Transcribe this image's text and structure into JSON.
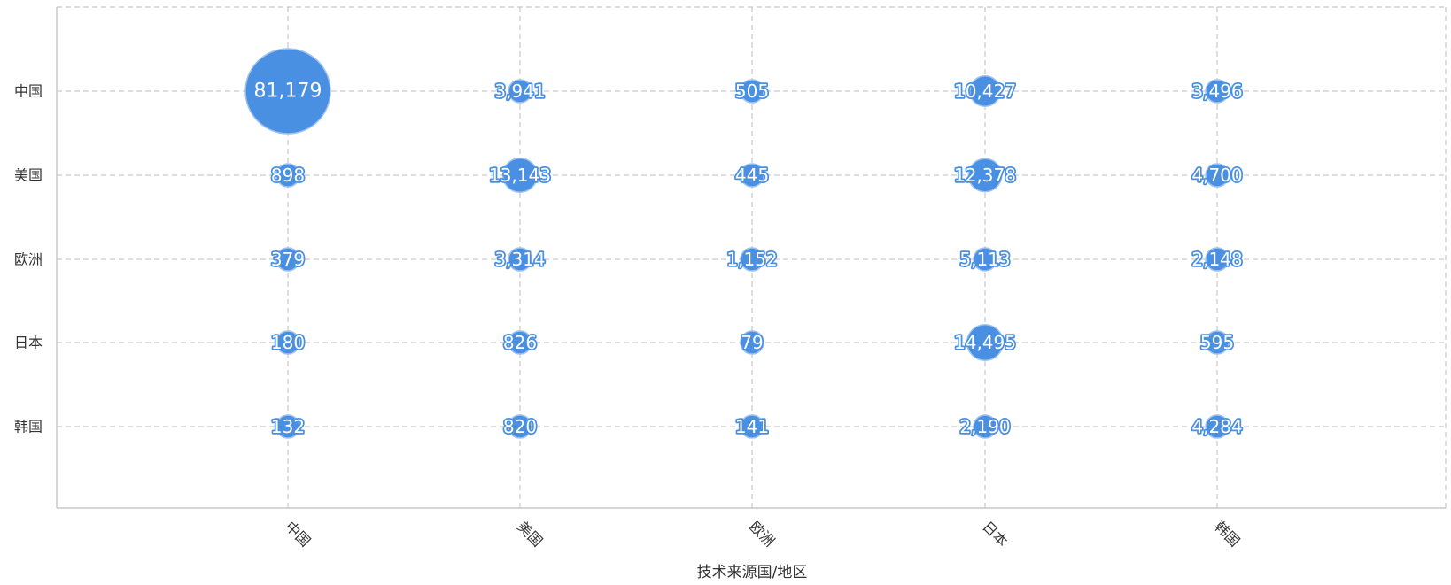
{
  "chart_data": {
    "type": "scatter",
    "variant": "bubble-matrix",
    "xlabel": "技术来源国/地区",
    "ylabel": "",
    "x_categories": [
      "中国",
      "美国",
      "欧洲",
      "日本",
      "韩国"
    ],
    "y_categories": [
      "中国",
      "美国",
      "欧洲",
      "日本",
      "韩国"
    ],
    "values": [
      [
        81179,
        3941,
        505,
        10427,
        3496
      ],
      [
        898,
        13143,
        445,
        12378,
        4700
      ],
      [
        379,
        3314,
        1152,
        5113,
        2148
      ],
      [
        180,
        826,
        79,
        14495,
        595
      ],
      [
        132,
        820,
        141,
        2190,
        4284
      ]
    ],
    "value_labels": [
      [
        "81,179",
        "3,941",
        "505",
        "10,427",
        "3,496"
      ],
      [
        "898",
        "13,143",
        "445",
        "12,378",
        "4,700"
      ],
      [
        "379",
        "3,314",
        "1,152",
        "5,113",
        "2,148"
      ],
      [
        "180",
        "826",
        "79",
        "14,495",
        "595"
      ],
      [
        "132",
        "820",
        "141",
        "2,190",
        "4,284"
      ]
    ],
    "grid": true,
    "legend": "none",
    "colors": {
      "bubble": "#4a90e2",
      "bubble_outline": "#9fc2ee",
      "grid": "#bdbdbd"
    }
  }
}
